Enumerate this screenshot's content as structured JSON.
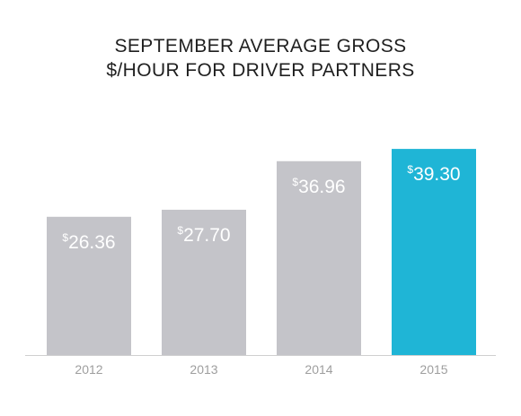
{
  "colors": {
    "bar_default": "#c4c4c9",
    "bar_highlight": "#1fb5d6",
    "baseline": "#cfcfcf",
    "tick_text": "#9e9e9e",
    "bar_text": "#ffffff",
    "title_text": "#1f1f1f"
  },
  "chart_data": {
    "type": "bar",
    "title": [
      "SEPTEMBER AVERAGE GROSS",
      "$/HOUR FOR DRIVER PARTNERS"
    ],
    "categories": [
      "2012",
      "2013",
      "2014",
      "2015"
    ],
    "values": [
      26.36,
      27.7,
      36.96,
      39.3
    ],
    "value_labels": [
      "26.36",
      "27.70",
      "36.96",
      "39.30"
    ],
    "currency_symbol": "$",
    "highlight_category": "2015",
    "xlabel": "",
    "ylabel": "",
    "ylim": [
      0,
      45
    ],
    "grid": false,
    "legend": "none"
  }
}
